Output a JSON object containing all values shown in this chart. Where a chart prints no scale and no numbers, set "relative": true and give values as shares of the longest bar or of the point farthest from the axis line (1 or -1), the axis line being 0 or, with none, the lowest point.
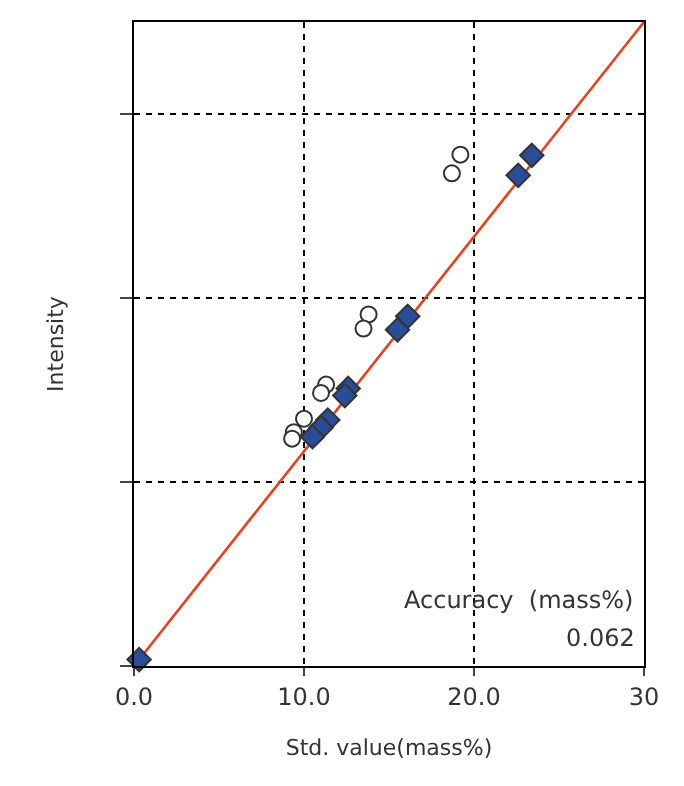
{
  "chart_data": {
    "type": "scatter",
    "xlabel": "Std. value(mass%)",
    "ylabel": "Intensity",
    "relative": true,
    "xlim": [
      0,
      30
    ],
    "xticks": [
      {
        "value": 0,
        "label": "0.0"
      },
      {
        "value": 10,
        "label": "10.0"
      },
      {
        "value": 20,
        "label": "20.0"
      },
      30
    ],
    "grid": true,
    "annotations": [
      "Accuracy  (mass%)",
      "0.062"
    ],
    "series": [
      {
        "type": "line",
        "color": "#e8401c",
        "x": [
          0,
          30
        ],
        "values": [
          0,
          1
        ],
        "marker": "none",
        "line_style": "solid"
      },
      {
        "color": "#ffffff",
        "marker": "circle",
        "x": [
          19.2,
          18.7,
          13.8,
          13.5,
          11.3,
          11.0,
          10.0,
          9.4,
          9.3
        ],
        "values": [
          0.794,
          0.765,
          0.546,
          0.524,
          0.437,
          0.424,
          0.384,
          0.363,
          0.353
        ]
      },
      {
        "color": "#2a4d9b",
        "marker": "diamond",
        "x": [
          23.4,
          22.6,
          16.1,
          15.5,
          12.6,
          12.4,
          11.4,
          11.0,
          10.5,
          0.3
        ],
        "values": [
          0.793,
          0.762,
          0.543,
          0.522,
          0.431,
          0.42,
          0.382,
          0.37,
          0.356,
          0.01
        ]
      }
    ]
  }
}
